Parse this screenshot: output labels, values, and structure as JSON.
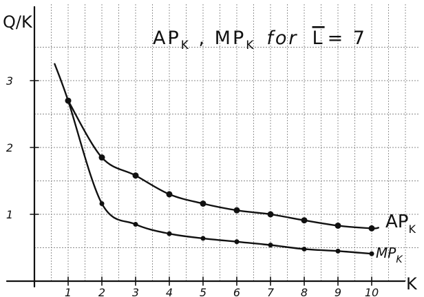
{
  "chart_data": {
    "type": "line",
    "title": "AP_K , MP_K for L̄ = 7",
    "title_parts": {
      "ap": "AP",
      "mp": "MP",
      "sub": "K",
      "for": "for",
      "lbar": "L",
      "eq": "= 7"
    },
    "xlabel": "K",
    "ylabel": "Q/K",
    "xlim": [
      0,
      11.2
    ],
    "ylim": [
      0,
      3.8
    ],
    "x_ticks": [
      1,
      2,
      3,
      4,
      5,
      6,
      7,
      8,
      9,
      10
    ],
    "x_tick_labels": [
      "1",
      "2",
      "3",
      "4",
      "5",
      "6",
      "7",
      "8",
      "9",
      "10"
    ],
    "y_ticks": [
      1,
      2,
      3
    ],
    "y_tick_labels": [
      "1",
      "2",
      "3"
    ],
    "grid": true,
    "legend": "labels at right end of curves",
    "series": [
      {
        "name": "AP_K",
        "label_main": "AP",
        "label_sub": "K",
        "x": [
          1,
          2,
          3,
          4,
          5,
          6,
          7,
          8,
          9,
          10
        ],
        "values": [
          2.7,
          1.85,
          1.58,
          1.3,
          1.16,
          1.06,
          1.0,
          0.91,
          0.83,
          0.79
        ]
      },
      {
        "name": "MP_K",
        "label_main": "MP",
        "label_sub": "K",
        "x": [
          1,
          2,
          3,
          4,
          5,
          6,
          7,
          8,
          9,
          10
        ],
        "values": [
          2.7,
          1.16,
          0.85,
          0.71,
          0.64,
          0.59,
          0.54,
          0.48,
          0.45,
          0.41
        ]
      }
    ],
    "extensions": {
      "mp_start": [
        0.6,
        3.25
      ],
      "ap_end": [
        10.2,
        0.8
      ]
    },
    "colors": {
      "ink": "#111111",
      "grid": "#888888",
      "background": "#ffffff"
    }
  }
}
